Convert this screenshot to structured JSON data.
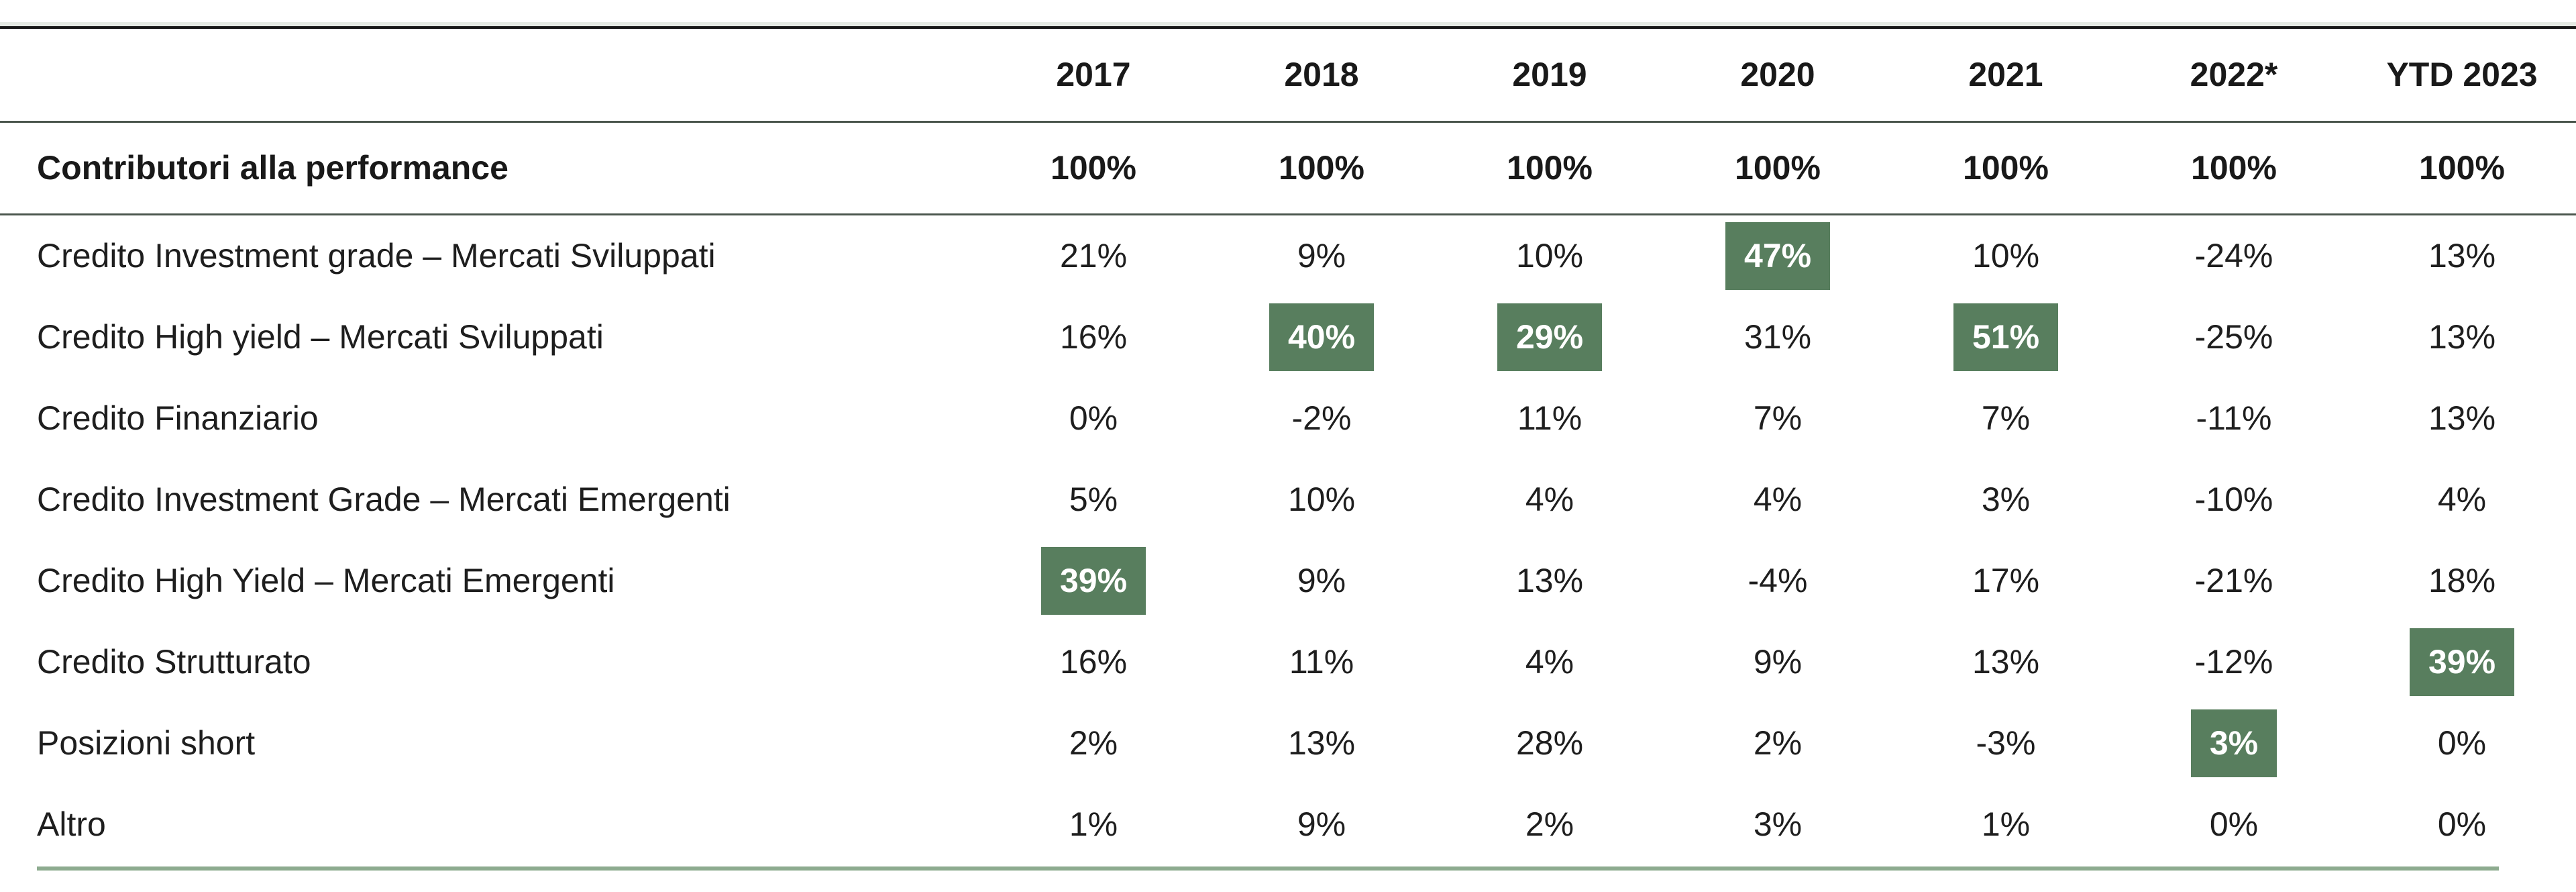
{
  "chart_data": {
    "type": "table",
    "title": "Contributori alla performance",
    "columns": [
      "2017",
      "2018",
      "2019",
      "2020",
      "2021",
      "2022*",
      "YTD 2023"
    ],
    "header_row": {
      "label": "Contributori alla performance",
      "values": [
        "100%",
        "100%",
        "100%",
        "100%",
        "100%",
        "100%",
        "100%"
      ]
    },
    "rows": [
      {
        "label": "Credito Investment grade – Mercati Sviluppati",
        "values": [
          "21%",
          "9%",
          "10%",
          "47%",
          "10%",
          "-24%",
          "13%"
        ],
        "highlights": [
          3
        ]
      },
      {
        "label": "Credito High yield – Mercati Sviluppati",
        "values": [
          "16%",
          "40%",
          "29%",
          "31%",
          "51%",
          "-25%",
          "13%"
        ],
        "highlights": [
          1,
          2,
          4
        ]
      },
      {
        "label": "Credito Finanziario",
        "values": [
          "0%",
          "-2%",
          "11%",
          "7%",
          "7%",
          "-11%",
          "13%"
        ],
        "highlights": []
      },
      {
        "label": "Credito Investment Grade – Mercati Emergenti",
        "values": [
          "5%",
          "10%",
          "4%",
          "4%",
          "3%",
          "-10%",
          "4%"
        ],
        "highlights": []
      },
      {
        "label": "Credito High Yield – Mercati Emergenti",
        "values": [
          "39%",
          "9%",
          "13%",
          "-4%",
          "17%",
          "-21%",
          "18%"
        ],
        "highlights": [
          0
        ]
      },
      {
        "label": "Credito Strutturato",
        "values": [
          "16%",
          "11%",
          "4%",
          "9%",
          "13%",
          "-12%",
          "39%"
        ],
        "highlights": [
          6
        ]
      },
      {
        "label": "Posizioni short",
        "values": [
          "2%",
          "13%",
          "28%",
          "2%",
          "-3%",
          "3%",
          "0%"
        ],
        "highlights": [
          5
        ]
      },
      {
        "label": "Altro",
        "values": [
          "1%",
          "9%",
          "2%",
          "3%",
          "1%",
          "0%",
          "0%"
        ],
        "highlights": []
      }
    ],
    "legend_position": "none",
    "grid": "horizontal-rules-only"
  },
  "colors": {
    "highlight_bg": "#587e5e",
    "highlight_text": "#ffffff",
    "bottom_border": "#8dab8f",
    "rule_dark": "#4b564d",
    "top_border_dark": "#171717",
    "top_border_light": "#e4e9e3"
  }
}
